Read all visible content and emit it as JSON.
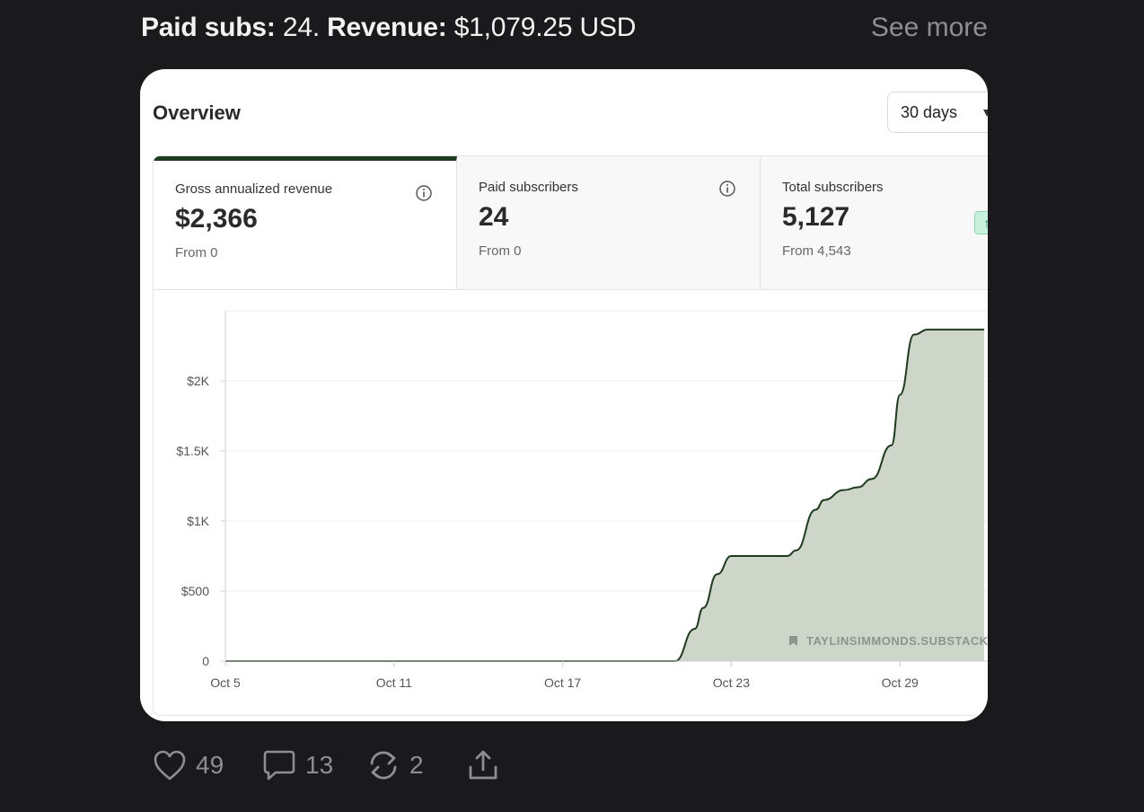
{
  "headline": {
    "subs_label": "Paid subs:",
    "subs_value": "24.",
    "revenue_label": "Revenue:",
    "revenue_value": "$1,079.25 USD"
  },
  "see_more_label": "See more",
  "overview": {
    "title": "Overview",
    "range_select": {
      "selected": "30 days"
    },
    "stats": [
      {
        "label": "Gross annualized revenue",
        "value": "$2,366",
        "from": "From 0",
        "active": true,
        "icon": "info-icon"
      },
      {
        "label": "Paid subscribers",
        "value": "24",
        "from": "From 0",
        "active": false,
        "icon": "info-icon"
      },
      {
        "label": "Total subscribers",
        "value": "5,127",
        "from": "From 4,543",
        "active": false,
        "icon": "trend-up-icon"
      }
    ],
    "watermark": "TAYLINSIMMONDS.SUBSTACK"
  },
  "chart_data": {
    "type": "area",
    "y_ticks": [
      "0",
      "$500",
      "$1K",
      "$1.5K",
      "$2K"
    ],
    "y_tick_values": [
      0,
      500,
      1000,
      1500,
      2000
    ],
    "x_ticks": [
      "Oct 5",
      "Oct 11",
      "Oct 17",
      "Oct 23",
      "Oct 29"
    ],
    "x_tick_days": [
      5,
      11,
      17,
      23,
      29
    ],
    "ylim": [
      0,
      2500
    ],
    "xlim": [
      5,
      32
    ],
    "grid": true,
    "series": [
      {
        "x": [
          5,
          21,
          21.7,
          22,
          22.5,
          23,
          24,
          25,
          25.3,
          26,
          26.3,
          27,
          27.5,
          28,
          28.7,
          29,
          29.5,
          30,
          32
        ],
        "values": [
          0,
          0,
          230,
          380,
          620,
          750,
          750,
          750,
          790,
          1080,
          1150,
          1220,
          1240,
          1300,
          1540,
          1900,
          2330,
          2366,
          2366
        ]
      }
    ],
    "colors": {
      "line": "#1e3a1f",
      "fill": "#c9d1c4"
    }
  },
  "actions": {
    "like_count": "49",
    "comment_count": "13",
    "restack_count": "2"
  }
}
